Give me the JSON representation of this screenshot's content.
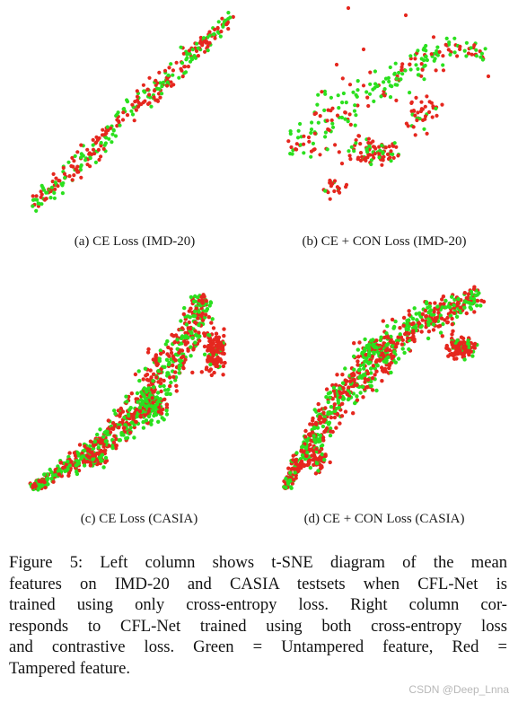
{
  "panels": [
    {
      "id": "a",
      "caption": "(a) CE Loss (IMD-20)"
    },
    {
      "id": "b",
      "caption": "(b) CE + CON Loss (IMD-20)"
    },
    {
      "id": "c",
      "caption": "(c) CE Loss (CASIA)"
    },
    {
      "id": "d",
      "caption": "(d) CE + CON Loss (CASIA)"
    }
  ],
  "colors": {
    "untampered": "#2be01f",
    "tampered": "#e5271e"
  },
  "caption_lines": [
    "Figure 5: Left column shows t-SNE diagram of the mean",
    "features on IMD-20 and CASIA testsets when CFL-Net is",
    "trained using only cross-entropy loss.  Right column cor-",
    "responds to CFL-Net trained using both cross-entropy loss",
    "and contrastive loss.  Green = Untampered feature, Red =",
    "Tampered feature."
  ],
  "watermark": "CSDN @Deep_Lnna"
}
